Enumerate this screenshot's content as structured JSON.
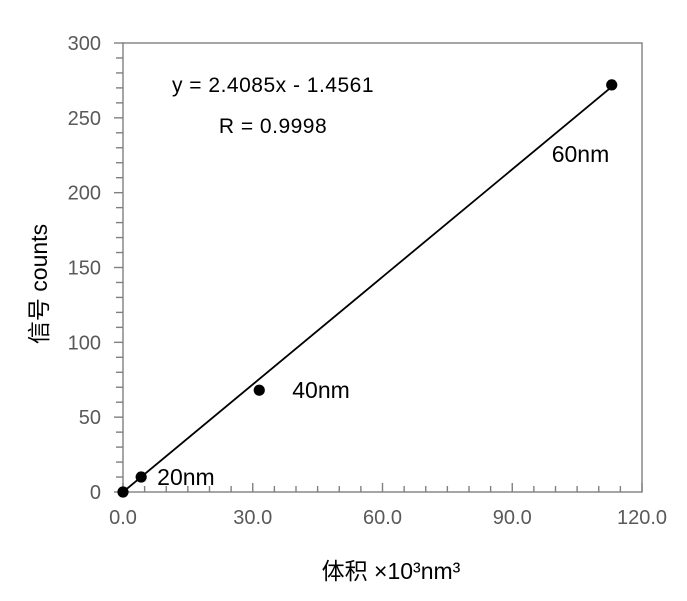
{
  "chart_data": {
    "type": "scatter",
    "title": "",
    "xlabel": "体积 ×10³nm³",
    "ylabel": "信号 counts",
    "xlim": [
      0,
      120
    ],
    "ylim": [
      0,
      300
    ],
    "x_major_ticks": [
      0,
      30,
      60,
      90,
      120
    ],
    "x_tick_labels": [
      "0.0",
      "30.0",
      "60.0",
      "90.0",
      "120.0"
    ],
    "x_minor_step": 5,
    "y_major_ticks": [
      0,
      50,
      100,
      150,
      200,
      250,
      300
    ],
    "y_tick_labels": [
      "0",
      "50",
      "100",
      "150",
      "200",
      "250",
      "300"
    ],
    "y_minor_step": 10,
    "grid": false,
    "legend": null,
    "points": [
      {
        "x": 0,
        "y": 0,
        "label": ""
      },
      {
        "x": 4.2,
        "y": 10,
        "label": "20nm"
      },
      {
        "x": 31.5,
        "y": 68,
        "label": "40nm"
      },
      {
        "x": 113,
        "y": 272,
        "label": "60nm"
      }
    ],
    "trendline": {
      "slope": 2.4085,
      "intercept": -1.4561,
      "x_start": 0,
      "x_end": 113
    },
    "annotations": {
      "equation": "y = 2.4085x - 1.4561",
      "r_value": "R = 0.9998"
    },
    "colors": {
      "axis": "#7f7f7f",
      "tick_label": "#595959",
      "data": "#000000",
      "text": "#000000",
      "background": "#ffffff"
    }
  }
}
